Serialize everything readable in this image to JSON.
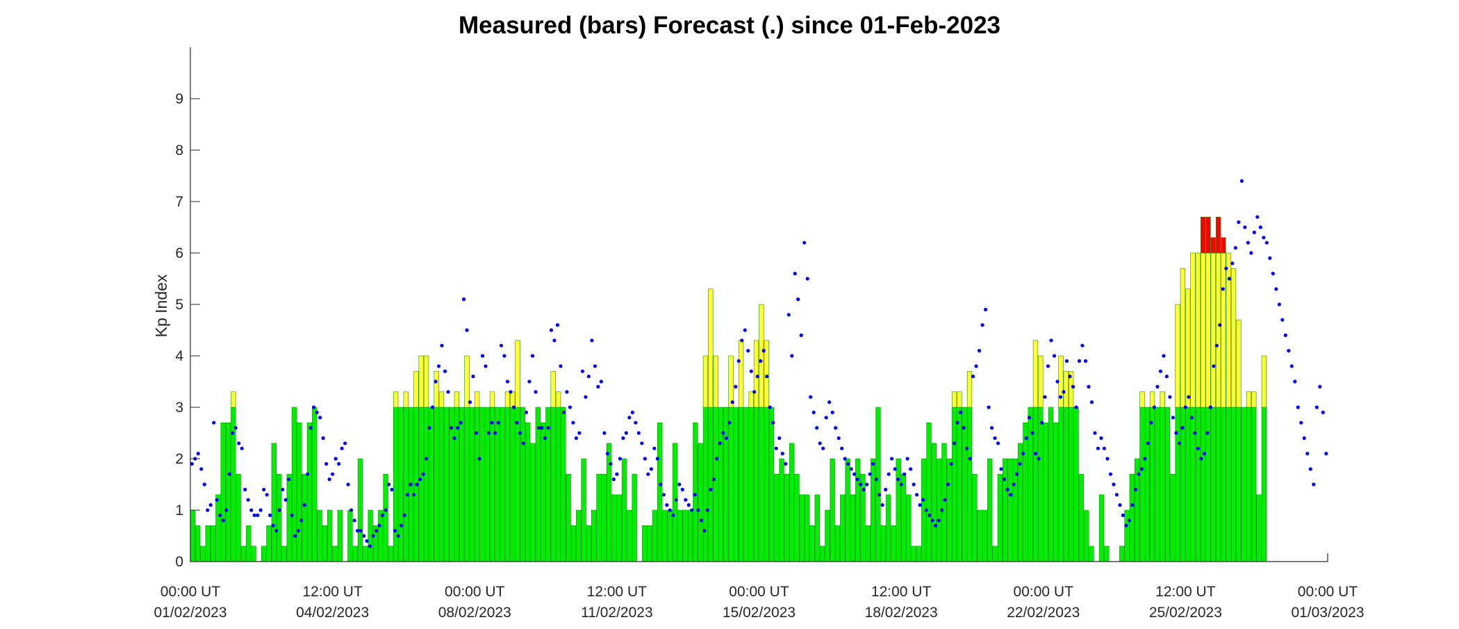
{
  "chart_data": {
    "type": "bar",
    "title": "Measured (bars) Forecast (.) since 01-Feb-2023",
    "xlabel": "",
    "ylabel": "Kp Index",
    "y_ticks": [
      "0",
      "1",
      "2",
      "3",
      "4",
      "5",
      "6",
      "7",
      "8",
      "9"
    ],
    "ylim": [
      0,
      10
    ],
    "x_tick_labels": [
      {
        "time": "00:00 UT",
        "date": "01/02/2023"
      },
      {
        "time": "12:00 UT",
        "date": "04/02/2023"
      },
      {
        "time": "00:00 UT",
        "date": "08/02/2023"
      },
      {
        "time": "12:00 UT",
        "date": "11/02/2023"
      },
      {
        "time": "00:00 UT",
        "date": "15/02/2023"
      },
      {
        "time": "12:00 UT",
        "date": "18/02/2023"
      },
      {
        "time": "00:00 UT",
        "date": "22/02/2023"
      },
      {
        "time": "12:00 UT",
        "date": "25/02/2023"
      },
      {
        "time": "00:00 UT",
        "date": "01/03/2023"
      }
    ],
    "bar_interval_hours": 3,
    "color_thresholds": {
      "green_max": 3,
      "yellow_max": 6
    },
    "colors": {
      "low": "#00ee00",
      "moderate": "#ffff33",
      "storm": "#ff0000",
      "forecast": "#0000ff",
      "bar_edge": "#1a8a1a"
    },
    "series": [
      {
        "name": "Measured",
        "values": [
          1.0,
          0.7,
          0.3,
          0.7,
          0.7,
          1.3,
          2.7,
          2.7,
          3.3,
          1.7,
          0.3,
          0.7,
          0.3,
          0.0,
          0.3,
          0.7,
          2.3,
          1.7,
          0.3,
          1.7,
          3.0,
          2.7,
          1.7,
          2.7,
          3.0,
          1.0,
          0.7,
          1.0,
          0.3,
          1.0,
          0.0,
          1.0,
          0.3,
          2.0,
          0.3,
          1.0,
          0.7,
          1.0,
          1.7,
          0.3,
          3.3,
          3.0,
          3.3,
          3.0,
          3.7,
          4.0,
          4.0,
          3.0,
          3.7,
          3.3,
          3.0,
          3.0,
          3.3,
          3.0,
          4.0,
          3.0,
          3.3,
          3.0,
          3.0,
          3.3,
          3.0,
          3.0,
          3.3,
          3.3,
          4.3,
          3.0,
          2.7,
          2.3,
          3.0,
          2.7,
          3.0,
          3.7,
          3.3,
          3.0,
          1.7,
          0.7,
          1.0,
          2.0,
          0.7,
          1.0,
          1.7,
          1.7,
          2.3,
          1.3,
          1.3,
          2.0,
          1.0,
          1.7,
          0.0,
          0.7,
          0.7,
          1.0,
          2.7,
          1.0,
          1.0,
          2.3,
          1.0,
          1.0,
          1.0,
          2.7,
          2.3,
          4.0,
          5.3,
          4.0,
          3.0,
          3.0,
          4.0,
          3.0,
          4.3,
          3.0,
          3.3,
          4.3,
          5.0,
          4.3,
          3.0,
          1.7,
          2.0,
          1.7,
          2.3,
          1.7,
          1.3,
          1.3,
          0.7,
          1.3,
          0.3,
          1.0,
          2.0,
          0.7,
          1.3,
          2.0,
          1.3,
          2.0,
          1.7,
          0.7,
          2.0,
          3.0,
          0.7,
          1.3,
          0.7,
          2.0,
          1.7,
          1.3,
          0.3,
          0.3,
          2.0,
          2.7,
          2.3,
          2.0,
          2.3,
          2.0,
          3.3,
          3.3,
          3.0,
          3.7,
          1.7,
          1.0,
          1.0,
          2.0,
          0.3,
          1.7,
          2.0,
          2.0,
          2.0,
          2.3,
          2.7,
          3.0,
          4.3,
          4.0,
          2.7,
          3.0,
          2.7,
          4.0,
          3.7,
          3.7,
          3.0,
          1.7,
          1.0,
          0.3,
          0.0,
          1.3,
          0.3,
          0.0,
          0.0,
          0.3,
          1.0,
          1.7,
          2.0,
          3.3,
          3.0,
          3.3,
          3.0,
          3.3,
          3.0,
          1.7,
          5.0,
          5.7,
          5.3,
          6.0,
          6.0,
          6.7,
          6.7,
          6.3,
          6.7,
          6.3,
          6.0,
          5.7,
          4.7,
          3.0,
          3.3,
          3.3,
          1.3,
          4.0
        ]
      },
      {
        "name": "Forecast",
        "values": [
          1.9,
          2.0,
          2.1,
          1.8,
          1.5,
          1.0,
          1.1,
          2.7,
          1.2,
          0.9,
          0.8,
          1.0,
          1.7,
          2.5,
          2.6,
          2.3,
          2.2,
          1.4,
          1.2,
          1.0,
          0.9,
          0.9,
          1.0,
          1.4,
          1.3,
          0.9,
          0.7,
          0.6,
          1.0,
          1.4,
          1.2,
          1.6,
          0.9,
          0.5,
          0.6,
          0.8,
          1.1,
          1.7,
          2.6,
          3.0,
          2.9,
          2.8,
          2.4,
          1.9,
          1.6,
          1.7,
          2.0,
          1.9,
          2.2,
          2.3,
          1.5,
          1.0,
          0.8,
          0.6,
          0.6,
          0.5,
          0.4,
          0.3,
          0.5,
          0.6,
          0.7,
          0.9,
          1.0,
          1.5,
          1.4,
          0.6,
          0.5,
          0.7,
          0.9,
          1.3,
          1.5,
          1.3,
          1.5,
          1.6,
          1.7,
          2.0,
          2.6,
          3.0,
          3.5,
          3.8,
          4.2,
          3.7,
          3.3,
          2.6,
          2.4,
          2.6,
          2.7,
          5.1,
          4.5,
          3.1,
          3.6,
          2.5,
          2.0,
          4.0,
          3.8,
          2.5,
          2.7,
          2.5,
          2.7,
          4.2,
          4.0,
          3.5,
          3.3,
          3.0,
          2.7,
          2.5,
          2.3,
          2.9,
          3.5,
          4.0,
          3.3,
          2.6,
          2.6,
          2.4,
          2.6,
          4.5,
          4.3,
          4.6,
          3.8,
          2.9,
          3.3,
          3.0,
          2.7,
          2.4,
          2.5,
          3.7,
          3.2,
          3.6,
          4.3,
          3.8,
          3.4,
          3.5,
          2.5,
          2.1,
          1.9,
          1.6,
          1.7,
          2.0,
          2.4,
          2.5,
          2.8,
          2.9,
          2.7,
          2.5,
          2.3,
          2.0,
          1.7,
          1.8,
          2.2,
          2.0,
          1.5,
          1.3,
          1.1,
          1.0,
          0.9,
          1.2,
          1.5,
          1.4,
          1.2,
          1.1,
          1.0,
          1.3,
          1.0,
          0.8,
          0.6,
          1.0,
          1.4,
          1.6,
          2.0,
          2.3,
          2.5,
          2.4,
          2.7,
          3.1,
          3.4,
          3.9,
          4.3,
          4.5,
          4.1,
          3.7,
          3.3,
          3.6,
          3.9,
          4.1,
          3.6,
          3.0,
          2.7,
          2.2,
          2.4,
          2.1,
          1.9,
          4.8,
          4.0,
          5.6,
          5.1,
          4.4,
          6.2,
          5.5,
          3.2,
          2.9,
          2.6,
          2.3,
          2.2,
          2.8,
          3.1,
          2.9,
          2.6,
          2.4,
          2.2,
          2.0,
          1.9,
          1.8,
          1.7,
          1.6,
          1.5,
          1.4,
          1.5,
          1.7,
          1.9,
          1.6,
          1.3,
          1.1,
          1.4,
          1.7,
          2.0,
          1.8,
          1.6,
          1.5,
          1.7,
          2.0,
          1.8,
          1.5,
          1.3,
          1.1,
          1.2,
          1.0,
          0.9,
          0.8,
          0.7,
          0.8,
          1.0,
          1.2,
          1.5,
          1.9,
          2.3,
          2.7,
          2.9,
          2.6,
          2.2,
          2.0,
          3.6,
          3.8,
          4.1,
          4.6,
          4.9,
          3.0,
          2.6,
          2.4,
          2.3,
          1.8,
          1.6,
          1.4,
          1.3,
          1.5,
          1.7,
          1.9,
          2.1,
          2.4,
          2.8,
          2.5,
          2.1,
          2.0,
          2.7,
          3.2,
          3.8,
          4.3,
          4.0,
          3.5,
          3.2,
          3.3,
          3.9,
          3.6,
          3.4,
          3.0,
          3.9,
          4.2,
          3.9,
          3.4,
          3.1,
          2.5,
          2.2,
          2.4,
          2.2,
          2.0,
          1.7,
          1.5,
          1.3,
          1.1,
          0.9,
          0.7,
          0.8,
          1.1,
          1.4,
          1.7,
          1.8,
          2.0,
          2.3,
          2.7,
          3.0,
          3.4,
          3.7,
          4.0,
          3.6,
          3.2,
          2.8,
          2.5,
          2.3,
          2.6,
          3.0,
          3.2,
          2.8,
          2.5,
          2.2,
          2.0,
          2.1,
          2.5,
          3.0,
          3.8,
          4.2,
          4.6,
          5.3,
          5.7,
          5.5,
          5.8,
          6.1,
          6.6,
          7.4,
          6.5,
          6.2,
          6.0,
          6.4,
          6.7,
          6.5,
          6.3,
          6.2,
          5.9,
          5.6,
          5.3,
          5.0,
          4.7,
          4.4,
          4.1,
          3.8,
          3.5,
          3.0,
          2.7,
          2.4,
          2.1,
          1.8,
          1.5,
          3.0,
          3.4,
          2.9,
          2.1
        ]
      }
    ]
  }
}
